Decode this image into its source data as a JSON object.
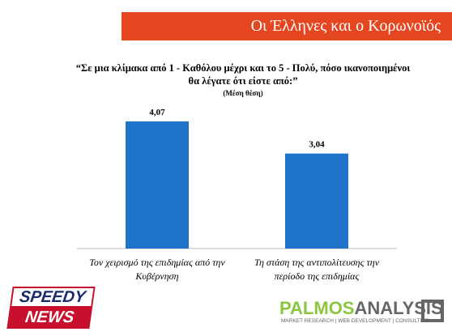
{
  "header": {
    "banner": "Οι Έλληνες και ο Κορωνοϊός"
  },
  "chart_data": {
    "type": "bar",
    "title": "“Σε μια κλίμακα από 1 - Καθόλου μέχρι και το 5 - Πολύ, πόσο ικανοποιημένοι θα λέγατε ότι είστε από:”",
    "subtitle": "(Μέση θέση)",
    "categories": [
      "Τον χειρισμό της επιδημίας από την Κυβέρνηση",
      "Τη στάση της αντιπολίτευσης την περίοδο της επιδημίας"
    ],
    "values": [
      4.07,
      3.04
    ],
    "value_labels": [
      "4,07",
      "3,04"
    ],
    "color": "#1f74c9"
  },
  "logos": {
    "left_top": "SPEEDY",
    "left_bottom": "NEWS",
    "right_a": "PALMOS",
    "right_b": "ANALYSIS",
    "right_tagline": "MARKET RESEARCH | WEB DEVELOPMENT | CONSULTING"
  }
}
